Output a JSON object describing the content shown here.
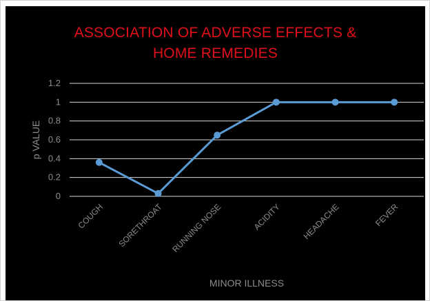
{
  "chart_data": {
    "type": "line",
    "title_lines": [
      "ASSOCIATION OF ADVERSE EFFECTS &",
      "HOME REMEDIES"
    ],
    "xlabel": "MINOR ILLNESS",
    "ylabel": "p VALUE",
    "categories": [
      "COUGH",
      "SORETHROAT",
      "RUNNING NOSE",
      "ACIDITY",
      "HEADACHE",
      "FEVER"
    ],
    "series": [
      {
        "values": [
          0.36,
          0.03,
          0.65,
          1.0,
          1.0,
          1.0
        ]
      }
    ],
    "ylim": [
      0,
      1.2
    ],
    "yticks": [
      "0",
      "0.2",
      "0.4",
      "0.6",
      "0.8",
      "1",
      "1.2"
    ],
    "grid": true,
    "colors": {
      "background": "#000000",
      "title": "#e0101a",
      "line": "#5b9bd5",
      "grid": "#d9d9d9",
      "text": "#8c8c8c"
    }
  }
}
